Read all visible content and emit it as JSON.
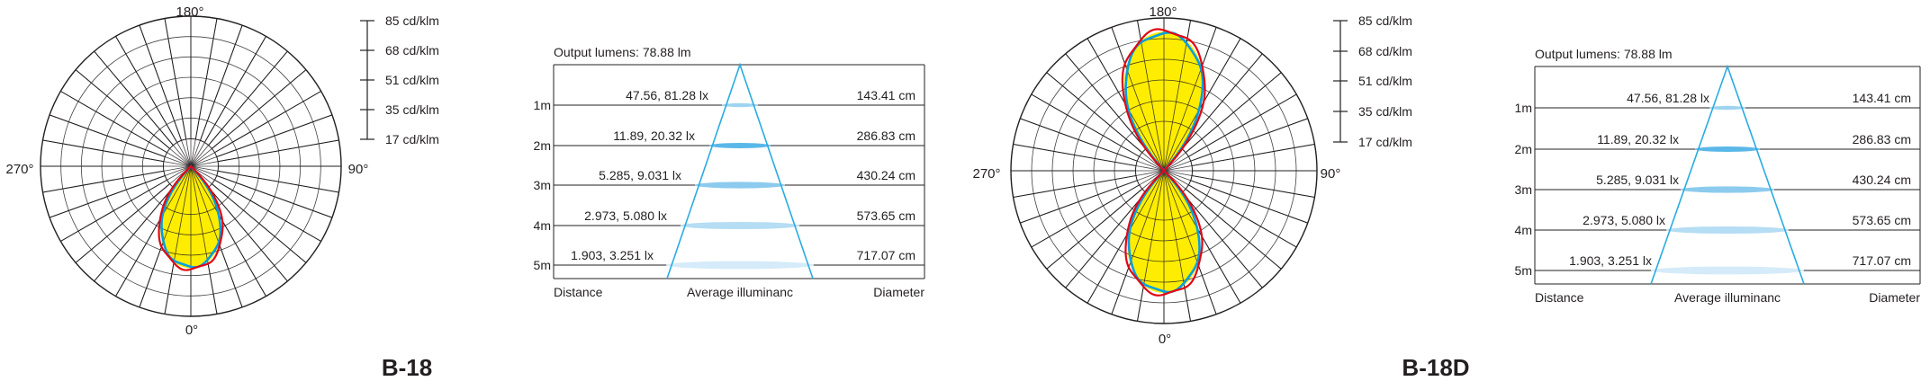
{
  "colors": {
    "grid": "#231f20",
    "fill": "#ffed00",
    "curve_c0": "#e30613",
    "curve_c90": "#009fe3",
    "cone": "#29abe2",
    "spot": "#9fd4f0"
  },
  "panels": [
    {
      "title": "B-18",
      "polar": {
        "angles": {
          "top": "180°",
          "right": "90°",
          "bottom": "0°",
          "left": "270°"
        },
        "scale_labels": [
          "85 cd/klm",
          "68 cd/klm",
          "51 cd/klm",
          "35 cd/klm",
          "17 cd/klm"
        ],
        "bidirectional": false
      },
      "illuminance": {
        "header": "Output lumens: 78.88 lm",
        "rows": [
          {
            "distance": "1m",
            "lux": "47.56, 81.28 lx",
            "diameter": "143.41 cm"
          },
          {
            "distance": "2m",
            "lux": "11.89, 20.32 lx",
            "diameter": "286.83 cm"
          },
          {
            "distance": "3m",
            "lux": "5.285, 9.031 lx",
            "diameter": "430.24 cm"
          },
          {
            "distance": "4m",
            "lux": "2.973, 5.080 lx",
            "diameter": "573.65 cm"
          },
          {
            "distance": "5m",
            "lux": "1.903, 3.251 lx",
            "diameter": "717.07 cm"
          }
        ],
        "footer": {
          "distance": "Distance",
          "illuminance": "Average illuminanc",
          "diameter": "Diameter"
        }
      }
    },
    {
      "title": "B-18D",
      "polar": {
        "angles": {
          "top": "180°",
          "right": "90°",
          "bottom": "0°",
          "left": "270°"
        },
        "scale_labels": [
          "85 cd/klm",
          "68 cd/klm",
          "51 cd/klm",
          "35 cd/klm",
          "17 cd/klm"
        ],
        "bidirectional": true
      },
      "illuminance": {
        "header": "Output lumens: 78.88 lm",
        "rows": [
          {
            "distance": "1m",
            "lux": "47.56, 81.28 lx",
            "diameter": "143.41 cm"
          },
          {
            "distance": "2m",
            "lux": "11.89, 20.32 lx",
            "diameter": "286.83 cm"
          },
          {
            "distance": "3m",
            "lux": "5.285, 9.031 lx",
            "diameter": "430.24 cm"
          },
          {
            "distance": "4m",
            "lux": "2.973, 5.080 lx",
            "diameter": "573.65 cm"
          },
          {
            "distance": "5m",
            "lux": "1.903, 3.251 lx",
            "diameter": "717.07 cm"
          }
        ],
        "footer": {
          "distance": "Distance",
          "illuminance": "Average illuminanc",
          "diameter": "Diameter"
        }
      }
    }
  ]
}
